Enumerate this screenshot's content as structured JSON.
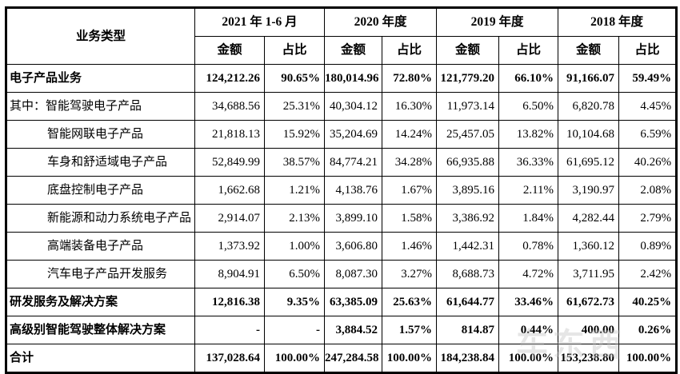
{
  "watermark_text": "车东西",
  "table": {
    "row_header_label": "业务类型",
    "col_groups": [
      {
        "label": "2021 年 1-6 月"
      },
      {
        "label": "2020 年度"
      },
      {
        "label": "2019 年度"
      },
      {
        "label": "2018 年度"
      }
    ],
    "sub_headers": [
      "金额",
      "占比"
    ],
    "rows": [
      {
        "label": "电子产品业务",
        "style": "bold",
        "values": [
          "124,212.26",
          "90.65%",
          "180,014.96",
          "72.80%",
          "121,779.20",
          "66.10%",
          "91,166.07",
          "59.49%"
        ]
      },
      {
        "label": "其中：智能驾驶电子产品",
        "style": "normal",
        "values": [
          "34,688.56",
          "25.31%",
          "40,304.12",
          "16.30%",
          "11,973.14",
          "6.50%",
          "6,820.78",
          "4.45%"
        ]
      },
      {
        "label": "智能网联电子产品",
        "style": "indent",
        "values": [
          "21,818.13",
          "15.92%",
          "35,204.69",
          "14.24%",
          "25,457.05",
          "13.82%",
          "10,104.68",
          "6.59%"
        ]
      },
      {
        "label": "车身和舒适域电子产品",
        "style": "indent",
        "values": [
          "52,849.99",
          "38.57%",
          "84,774.21",
          "34.28%",
          "66,935.88",
          "36.33%",
          "61,695.12",
          "40.26%"
        ]
      },
      {
        "label": "底盘控制电子产品",
        "style": "indent",
        "values": [
          "1,662.68",
          "1.21%",
          "4,138.76",
          "1.67%",
          "3,895.16",
          "2.11%",
          "3,190.97",
          "2.08%"
        ]
      },
      {
        "label": "新能源和动力系统电子产品",
        "style": "indent",
        "values": [
          "2,914.07",
          "2.13%",
          "3,899.10",
          "1.58%",
          "3,386.92",
          "1.84%",
          "4,282.44",
          "2.79%"
        ]
      },
      {
        "label": "高端装备电子产品",
        "style": "indent",
        "values": [
          "1,373.92",
          "1.00%",
          "3,606.80",
          "1.46%",
          "1,442.31",
          "0.78%",
          "1,360.12",
          "0.89%"
        ]
      },
      {
        "label": "汽车电子产品开发服务",
        "style": "indent",
        "values": [
          "8,904.91",
          "6.50%",
          "8,087.30",
          "3.27%",
          "8,688.73",
          "4.72%",
          "3,711.95",
          "2.42%"
        ]
      },
      {
        "label": "研发服务及解决方案",
        "style": "bold",
        "values": [
          "12,816.38",
          "9.35%",
          "63,385.09",
          "25.63%",
          "61,644.77",
          "33.46%",
          "61,672.73",
          "40.25%"
        ]
      },
      {
        "label": "高级别智能驾驶整体解决方案",
        "style": "bold",
        "values": [
          "-",
          "-",
          "3,884.52",
          "1.57%",
          "814.87",
          "0.44%",
          "400.00",
          "0.26%"
        ]
      },
      {
        "label": "合计",
        "style": "bold",
        "values": [
          "137,028.64",
          "100.00%",
          "247,284.58",
          "100.00%",
          "184,238.84",
          "100.00%",
          "153,238.80",
          "100.00%"
        ]
      }
    ]
  }
}
